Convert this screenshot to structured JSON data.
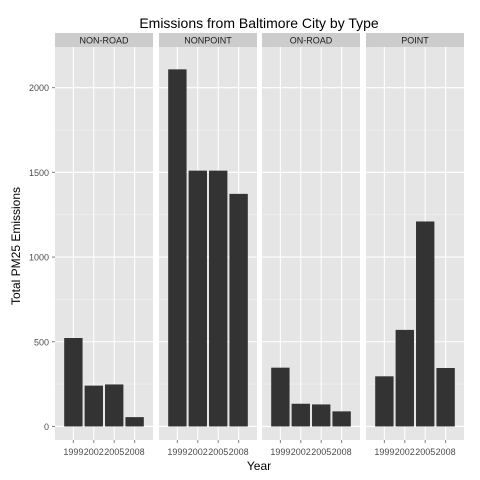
{
  "chart_data": {
    "type": "bar",
    "title": "Emissions from Baltimore City by Type",
    "xlabel": "Year",
    "ylabel": "Total PM25 Emissions",
    "categories": [
      "1999",
      "2002",
      "2005",
      "2008"
    ],
    "ylim": [
      -80,
      2240
    ],
    "yticks": [
      0,
      500,
      1000,
      1500,
      2000
    ],
    "grid": true,
    "legend": "none",
    "facets": [
      {
        "name": "NON-ROAD",
        "values": [
          522,
          241,
          248,
          55
        ]
      },
      {
        "name": "NONPOINT",
        "values": [
          2108,
          1510,
          1510,
          1373
        ]
      },
      {
        "name": "ON-ROAD",
        "values": [
          347,
          134,
          130,
          89
        ]
      },
      {
        "name": "POINT",
        "values": [
          296,
          570,
          1210,
          345
        ]
      }
    ],
    "colors": {
      "bar": "#333333",
      "panel_background": "#e5e5e5",
      "strip_background": "#cccccc",
      "grid_major": "#ffffff",
      "grid_minor": "#f2f2f2"
    }
  }
}
